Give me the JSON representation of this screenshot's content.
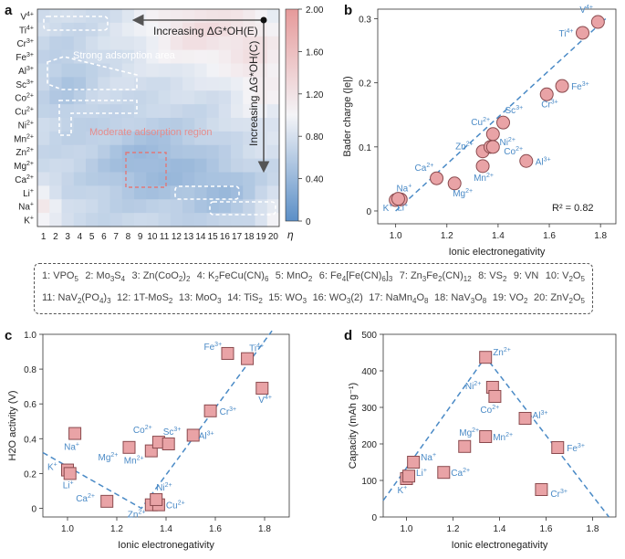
{
  "panels": {
    "a": "a",
    "b": "b",
    "c": "c",
    "d": "d"
  },
  "heatmap": {
    "ions": [
      "V4+",
      "Ti4+",
      "Cr3+",
      "Fe3+",
      "Al3+",
      "Sc3+",
      "Co2+",
      "Cu2+",
      "Ni2+",
      "Mn2+",
      "Zn2+",
      "Mg2+",
      "Ca2+",
      "Li+",
      "Na+",
      "K+"
    ],
    "x_ticks": [
      "1",
      "2",
      "3",
      "4",
      "5",
      "6",
      "7",
      "8",
      "9",
      "10",
      "11",
      "12",
      "13",
      "14",
      "15",
      "16",
      "17",
      "18",
      "19",
      "20"
    ],
    "colorbar": {
      "ticks": [
        "2.00",
        "1.60",
        "1.20",
        "0.80",
        "0.40",
        "0"
      ],
      "label": "η",
      "min": 0,
      "max": 2.0,
      "low_color": "#5b8fc7",
      "mid_color": "#f4f4f7",
      "high_color": "#e69a9a"
    },
    "arrow_h_label": "Increasing ΔG*OH(E)",
    "arrow_v_label": "Increasing ΔG*OH(C)",
    "region_strong": "Strong adsorption area",
    "region_moderate": "Moderate adsorption region"
  },
  "legend": {
    "row1": [
      "1: VPO5",
      "2: Mo3S4",
      "3: Zn(CoO2)2",
      "4: K2FeCu(CN)6",
      "5: MnO2",
      "6: Fe4[Fe(CN)6]3",
      "7: Zn3Fe2(CN)12",
      "8: VS2",
      "9: VN",
      "10: V2O5"
    ],
    "row2": [
      "11: NaV2(PO4)3",
      "12: 1T-MoS2",
      "13: MoO3",
      "14: TiS2",
      "15: WO3",
      "16: WO3(2)",
      "17: NaMn4O8",
      "18: NaV3O8",
      "19: VO2",
      "20: ZnV2O5"
    ]
  },
  "chart_data": [
    {
      "panel": "b",
      "type": "scatter",
      "xlabel": "Ionic electronegativity",
      "ylabel": "Bader charge (|e|)",
      "xlim": [
        0.93,
        1.86
      ],
      "ylim": [
        -0.02,
        0.315
      ],
      "xticks": [
        "1.0",
        "1.2",
        "1.4",
        "1.6",
        "1.8"
      ],
      "yticks": [
        "0",
        "0.1",
        "0.2",
        "0.3"
      ],
      "annotation": "R² = 0.82",
      "points": [
        {
          "ion": "K+",
          "x": 1.0,
          "y": 0.017
        },
        {
          "ion": "Li+",
          "x": 1.02,
          "y": 0.018
        },
        {
          "ion": "Na+",
          "x": 1.01,
          "y": 0.019
        },
        {
          "ion": "Ca2+",
          "x": 1.16,
          "y": 0.051
        },
        {
          "ion": "Mg2+",
          "x": 1.23,
          "y": 0.043
        },
        {
          "ion": "Mn2+",
          "x": 1.34,
          "y": 0.07
        },
        {
          "ion": "Zn2+",
          "x": 1.34,
          "y": 0.093
        },
        {
          "ion": "Ni2+",
          "x": 1.37,
          "y": 0.1
        },
        {
          "ion": "Co2+",
          "x": 1.38,
          "y": 0.1
        },
        {
          "ion": "Cu2+",
          "x": 1.38,
          "y": 0.12
        },
        {
          "ion": "Sc3+",
          "x": 1.42,
          "y": 0.138
        },
        {
          "ion": "Al3+",
          "x": 1.51,
          "y": 0.078
        },
        {
          "ion": "Cr3+",
          "x": 1.59,
          "y": 0.182
        },
        {
          "ion": "Fe3+",
          "x": 1.65,
          "y": 0.195
        },
        {
          "ion": "Ti4+",
          "x": 1.73,
          "y": 0.278
        },
        {
          "ion": "V4+",
          "x": 1.79,
          "y": 0.295
        }
      ],
      "fit": [
        [
          1.0,
          0.0
        ],
        [
          1.82,
          0.3
        ]
      ]
    },
    {
      "panel": "c",
      "type": "scatter",
      "xlabel": "Ionic electronegativity",
      "ylabel": "H2O activity (V)",
      "xlim": [
        0.9,
        1.9
      ],
      "ylim": [
        -0.05,
        1.0
      ],
      "xticks": [
        "1.0",
        "1.2",
        "1.4",
        "1.6",
        "1.8"
      ],
      "yticks": [
        "0",
        "0.2",
        "0.4",
        "0.6",
        "0.8",
        "1.0"
      ],
      "points": [
        {
          "ion": "K+",
          "x": 1.0,
          "y": 0.22
        },
        {
          "ion": "Li+",
          "x": 1.01,
          "y": 0.2
        },
        {
          "ion": "Na+",
          "x": 1.03,
          "y": 0.43
        },
        {
          "ion": "Ca2+",
          "x": 1.16,
          "y": 0.04
        },
        {
          "ion": "Mg2+",
          "x": 1.25,
          "y": 0.35
        },
        {
          "ion": "Zn2+",
          "x": 1.34,
          "y": 0.02
        },
        {
          "ion": "Cu2+",
          "x": 1.37,
          "y": 0.02
        },
        {
          "ion": "Ni2+",
          "x": 1.36,
          "y": 0.05
        },
        {
          "ion": "Mn2+",
          "x": 1.34,
          "y": 0.33
        },
        {
          "ion": "Co2+",
          "x": 1.37,
          "y": 0.38
        },
        {
          "ion": "Sc3+",
          "x": 1.41,
          "y": 0.37
        },
        {
          "ion": "Al3+",
          "x": 1.51,
          "y": 0.42
        },
        {
          "ion": "Cr3+",
          "x": 1.58,
          "y": 0.56
        },
        {
          "ion": "Fe3+",
          "x": 1.65,
          "y": 0.89
        },
        {
          "ion": "Ti4+",
          "x": 1.73,
          "y": 0.86
        },
        {
          "ion": "V4+",
          "x": 1.79,
          "y": 0.69
        }
      ],
      "fit": [
        [
          0.9,
          0.32
        ],
        [
          1.3,
          0.0
        ],
        [
          1.83,
          1.02
        ]
      ]
    },
    {
      "panel": "d",
      "type": "scatter",
      "xlabel": "Ionic electronegativity",
      "ylabel": "Capacity (mAh g⁻¹)",
      "xlim": [
        0.9,
        1.9
      ],
      "ylim": [
        0,
        500
      ],
      "xticks": [
        "1.0",
        "1.2",
        "1.4",
        "1.6",
        "1.8"
      ],
      "yticks": [
        "0",
        "100",
        "200",
        "300",
        "400",
        "500"
      ],
      "points": [
        {
          "ion": "K+",
          "x": 1.0,
          "y": 105
        },
        {
          "ion": "Li+",
          "x": 1.01,
          "y": 112
        },
        {
          "ion": "Na+",
          "x": 1.03,
          "y": 150
        },
        {
          "ion": "Ca2+",
          "x": 1.16,
          "y": 122
        },
        {
          "ion": "Mg2+",
          "x": 1.25,
          "y": 193
        },
        {
          "ion": "Mn2+",
          "x": 1.34,
          "y": 220
        },
        {
          "ion": "Zn2+",
          "x": 1.34,
          "y": 437
        },
        {
          "ion": "Ni2+",
          "x": 1.37,
          "y": 355
        },
        {
          "ion": "Co2+",
          "x": 1.38,
          "y": 330
        },
        {
          "ion": "Al3+",
          "x": 1.51,
          "y": 270
        },
        {
          "ion": "Cr3+",
          "x": 1.58,
          "y": 75
        },
        {
          "ion": "Fe3+",
          "x": 1.65,
          "y": 190
        }
      ],
      "fit": [
        [
          0.9,
          45
        ],
        [
          1.34,
          438
        ],
        [
          1.87,
          0
        ]
      ]
    }
  ]
}
